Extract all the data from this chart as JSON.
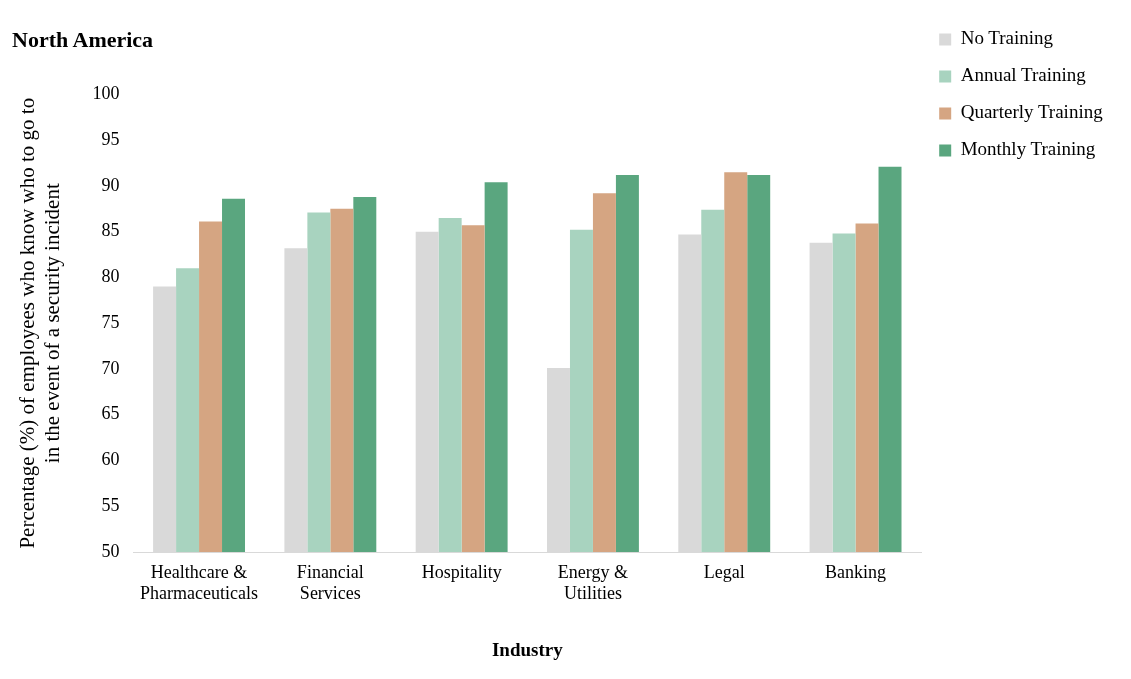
{
  "chart_data": {
    "type": "bar",
    "title": "North America",
    "xlabel": "Industry",
    "ylabel": "Percentage (%) of employees who know who to go to in the event of a security incident",
    "categories": [
      "Healthcare & Pharmaceuticals",
      "Financial Services",
      "Hospitality",
      "Energy & Utilities",
      "Legal",
      "Banking"
    ],
    "series": [
      {
        "name": "No Training",
        "color": "#d9d9d9",
        "values": [
          79.0,
          83.2,
          85.0,
          70.1,
          84.7,
          83.8
        ]
      },
      {
        "name": "Annual Training",
        "color": "#a8d3bf",
        "values": [
          81.0,
          87.1,
          86.5,
          85.2,
          87.4,
          84.8
        ]
      },
      {
        "name": "Quarterly Training",
        "color": "#d5a582",
        "values": [
          86.1,
          87.5,
          85.7,
          89.2,
          91.5,
          85.9
        ]
      },
      {
        "name": "Monthly Training",
        "color": "#5aa67f",
        "values": [
          88.6,
          88.8,
          90.4,
          91.2,
          91.2,
          92.1
        ]
      }
    ],
    "ylim": [
      50,
      100
    ],
    "yticks": [
      50,
      55,
      60,
      65,
      70,
      75,
      80,
      85,
      90,
      95,
      100
    ],
    "grid": false,
    "legend": "top right"
  }
}
